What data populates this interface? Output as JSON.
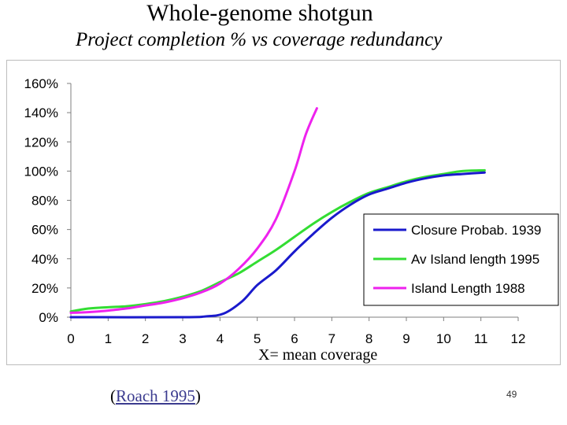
{
  "title": "Whole-genome shotgun",
  "subtitle": "Project completion %  vs coverage redundancy",
  "xlabel": "X= mean coverage",
  "citation": {
    "open": "(",
    "link": "Roach 1995",
    "close": ")"
  },
  "page_number": "49",
  "chart_data": {
    "type": "line",
    "xlim": [
      0,
      12
    ],
    "ylim": [
      0,
      160
    ],
    "xticks": [
      "0",
      "1",
      "2",
      "3",
      "4",
      "5",
      "6",
      "7",
      "8",
      "9",
      "10",
      "11",
      "12"
    ],
    "yticks": [
      "0%",
      "20%",
      "40%",
      "60%",
      "80%",
      "100%",
      "120%",
      "140%",
      "160%"
    ],
    "grid": false,
    "legend": "center-right",
    "series": [
      {
        "name": "Closure Probab. 1939",
        "color": "#1a1acc",
        "x": [
          0,
          3,
          3.6,
          4.1,
          4.6,
          5,
          5.5,
          6,
          6.5,
          7,
          7.5,
          8,
          8.5,
          9,
          9.5,
          10,
          10.5,
          11.1
        ],
        "y": [
          0,
          0,
          0.5,
          2.5,
          11,
          22,
          32,
          45,
          57,
          68,
          77,
          84,
          88,
          92,
          95,
          97,
          98,
          99
        ]
      },
      {
        "name": "Av Island length 1995",
        "color": "#33dd33",
        "x": [
          0,
          0.5,
          1,
          1.5,
          2,
          2.5,
          3,
          3.5,
          4,
          4.5,
          5,
          5.5,
          6,
          6.5,
          7,
          7.5,
          8,
          8.5,
          9,
          9.5,
          10,
          10.5,
          11.1
        ],
        "y": [
          4,
          6,
          6.8,
          7.5,
          9,
          11,
          14,
          18,
          24,
          30,
          38,
          46,
          55,
          64,
          72,
          79,
          85,
          89,
          93,
          96,
          98,
          100,
          100.5
        ]
      },
      {
        "name": "Island Length 1988",
        "color": "#ee22ee",
        "x": [
          0,
          0.5,
          1,
          1.5,
          2,
          2.5,
          3,
          3.5,
          4,
          4.5,
          5,
          5.5,
          6,
          6.3,
          6.6
        ],
        "y": [
          3,
          3.5,
          4.5,
          6,
          8,
          10,
          13,
          17,
          23,
          33,
          47,
          67,
          100,
          125,
          143
        ]
      }
    ]
  }
}
